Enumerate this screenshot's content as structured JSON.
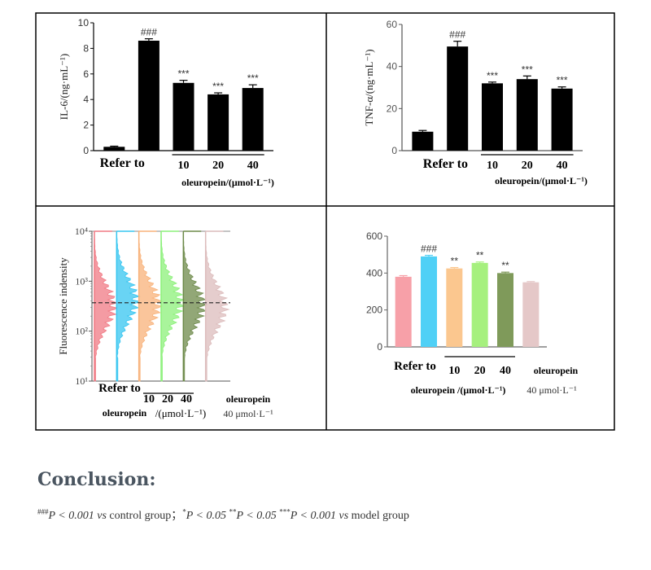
{
  "chart_data": [
    {
      "type": "bar",
      "ylabel": "IL-6/(ng·mL⁻¹)",
      "ylim": [
        0,
        10
      ],
      "yticks": [
        0,
        2,
        4,
        6,
        8,
        10
      ],
      "categories": [
        "Refer to",
        "",
        "10",
        "20",
        "40"
      ],
      "values": [
        0.3,
        8.6,
        5.3,
        4.4,
        4.9
      ],
      "errors": [
        0.05,
        0.15,
        0.2,
        0.12,
        0.25
      ],
      "annotations": [
        "",
        "###",
        "***",
        "***",
        "***"
      ],
      "xgroup_label": "oleuropein/(μmol·L⁻¹)",
      "color": "#000000"
    },
    {
      "type": "bar",
      "ylabel": "TNF-α/(ng·mL⁻¹)",
      "ylim": [
        0,
        60
      ],
      "yticks": [
        0,
        20,
        40,
        60
      ],
      "categories": [
        "Refer to",
        "",
        "10",
        "20",
        "40"
      ],
      "values": [
        9,
        49.5,
        32,
        34,
        29.5
      ],
      "errors": [
        0.6,
        2.5,
        0.6,
        1.5,
        0.8
      ],
      "annotations": [
        "",
        "###",
        "***",
        "***",
        "***"
      ],
      "xgroup_label": "oleuropein/(μmol·L⁻¹)",
      "color": "#000000"
    },
    {
      "type": "flow-cytometry-histogram",
      "ylabel": "Fluorescence indensity",
      "yscale": "log",
      "ylim": [
        10,
        10000
      ],
      "yticks": [
        "10¹",
        "10²",
        "10³",
        "10⁴"
      ],
      "series": [
        {
          "color": "#f07a84",
          "peak": 320
        },
        {
          "color": "#37c5f0",
          "peak": 420
        },
        {
          "color": "#f8b27a",
          "peak": 350
        },
        {
          "color": "#8cf07a",
          "peak": 370
        },
        {
          "color": "#6d8a4a",
          "peak": 330
        },
        {
          "color": "#dcbcbc",
          "peak": 300
        }
      ],
      "threshold": 370,
      "labels": {
        "refer": "Refer to",
        "doses": [
          "10",
          "20",
          "40"
        ],
        "unit": "/(μmol·L⁻¹)",
        "oleuropein": "oleuropein",
        "right_line1": "oleuropein",
        "right_line2": "40 μmol·L⁻¹"
      }
    },
    {
      "type": "bar",
      "ylim": [
        0,
        600
      ],
      "yticks": [
        0,
        200,
        400,
        600
      ],
      "categories": [
        "Refer to",
        "",
        "10",
        "20",
        "40",
        "oleuropein"
      ],
      "values": [
        380,
        490,
        425,
        455,
        400,
        350
      ],
      "errors": [
        6,
        6,
        5,
        5,
        5,
        4
      ],
      "annotations": [
        "",
        "###",
        "**",
        "**",
        "**",
        ""
      ],
      "colors": [
        "#f7a0a8",
        "#4fd0f6",
        "#fbc78f",
        "#a6f07e",
        "#7f9a5a",
        "#e5c8c8"
      ],
      "xgroup_label": "oleuropein /(μmol·L⁻¹)",
      "extra_label": "40 μmol·L⁻¹"
    }
  ],
  "conclusion": {
    "title": "Conclusion:",
    "f1_mark": "###",
    "f1_text": "P < 0.001 ",
    "f1_vs": "vs",
    "f1_tail": " control group；",
    "f2_mark": "*",
    "f2_text": "P < 0.05  ",
    "f3_mark": "**",
    "f3_text": "P < 0.05  ",
    "f4_mark": "***",
    "f4_text": "P < 0.001 ",
    "f4_vs": "vs",
    "f4_tail": " model group"
  }
}
